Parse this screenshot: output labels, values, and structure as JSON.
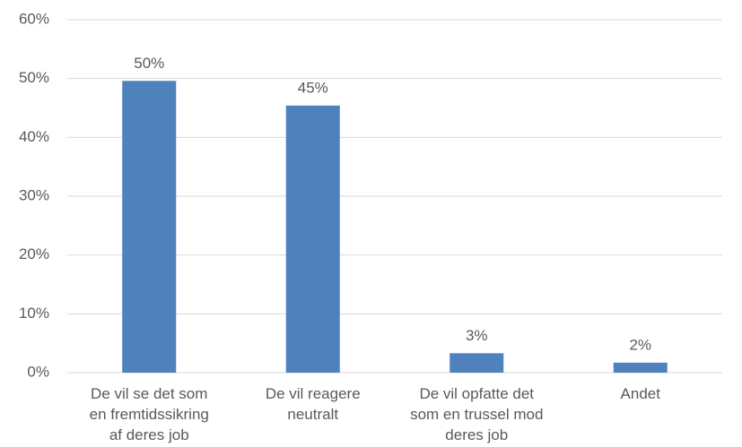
{
  "chart_data": {
    "type": "bar",
    "categories": [
      [
        "De vil se det som",
        "en fremtidssikring",
        "af deres job"
      ],
      [
        "De vil reagere",
        "neutralt"
      ],
      [
        "De vil opfatte det",
        "som en trussel mod",
        "deres job"
      ],
      [
        "Andet"
      ]
    ],
    "values": [
      49.6,
      45.4,
      3.3,
      1.7
    ],
    "value_labels": [
      "50%",
      "45%",
      "3%",
      "2%"
    ],
    "color": "#4f81bd",
    "ylim": [
      0,
      60
    ],
    "yticks": [
      {
        "value": 0,
        "label": "0%"
      },
      {
        "value": 10,
        "label": "10%"
      },
      {
        "value": 20,
        "label": "20%"
      },
      {
        "value": 30,
        "label": "30%"
      },
      {
        "value": 40,
        "label": "40%"
      },
      {
        "value": 50,
        "label": "50%"
      },
      {
        "value": 60,
        "label": "60%"
      }
    ],
    "grid": true
  }
}
